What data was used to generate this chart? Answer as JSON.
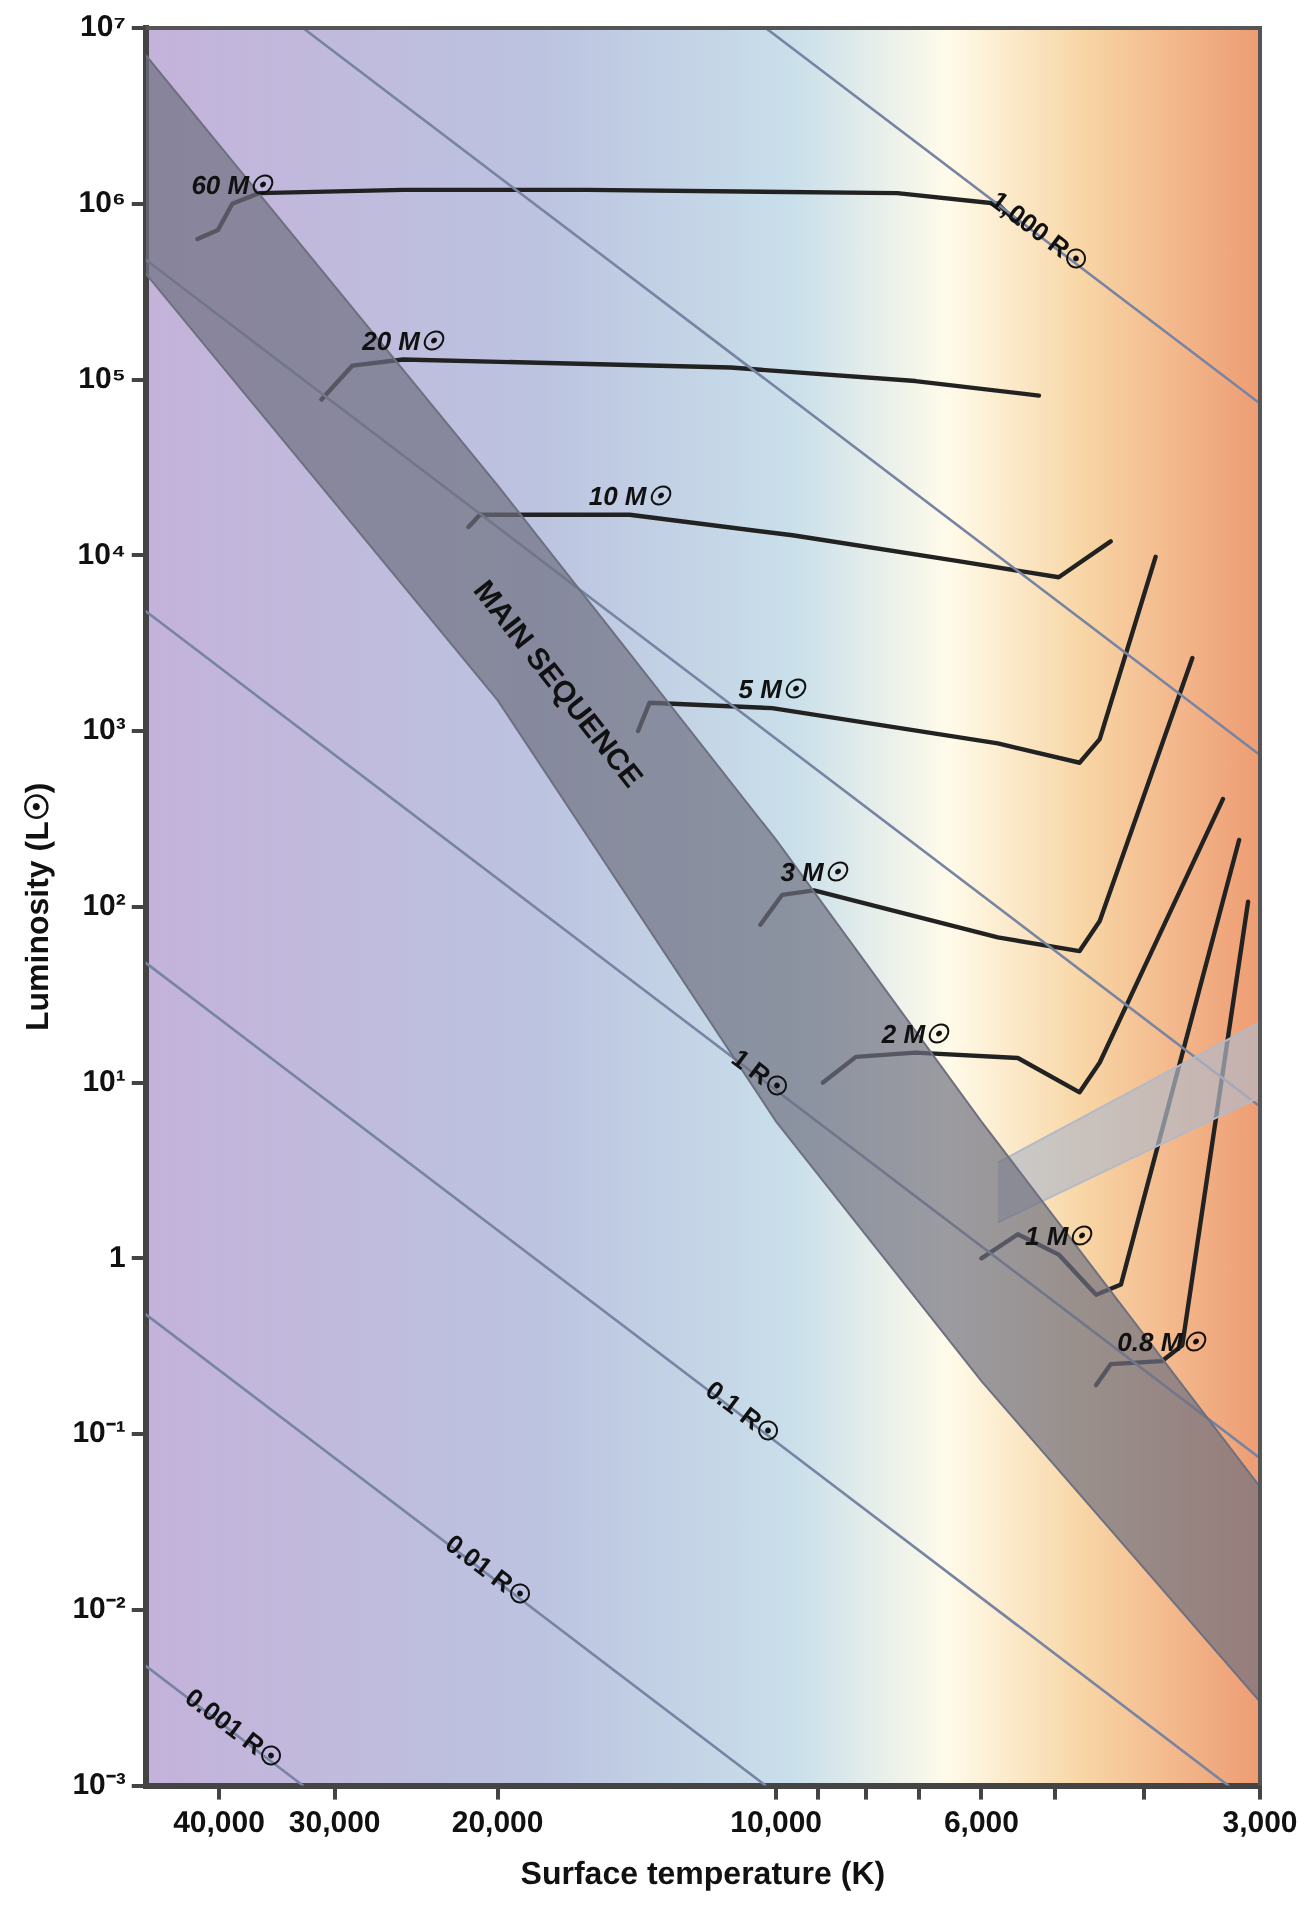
{
  "chart_data": {
    "type": "line",
    "xlabel": "Surface temperature (K)",
    "ylabel": "Luminosity (L☉)",
    "log": "xy",
    "legend": false,
    "xlim": [
      48000,
      3000
    ],
    "xticks": [
      {
        "value": 40000,
        "label": "40,000"
      },
      {
        "value": 30000,
        "label": "30,000"
      },
      {
        "value": 20000,
        "label": "20,000"
      },
      {
        "value": 10000,
        "label": "10,000"
      },
      {
        "value": 9000,
        "label": null
      },
      {
        "value": 8000,
        "label": null
      },
      {
        "value": 7000,
        "label": null
      },
      {
        "value": 6000,
        "label": "6,000"
      },
      {
        "value": 5000,
        "label": null
      },
      {
        "value": 4000,
        "label": null
      },
      {
        "value": 3000,
        "label": "3,000"
      }
    ],
    "ylim": [
      0.001,
      10000000
    ],
    "yticks": [
      {
        "value": 10000000,
        "label": "10⁷"
      },
      {
        "value": 1000000,
        "label": "10⁶"
      },
      {
        "value": 100000,
        "label": "10⁵"
      },
      {
        "value": 10000,
        "label": "10⁴"
      },
      {
        "value": 1000,
        "label": "10³"
      },
      {
        "value": 100,
        "label": "10²"
      },
      {
        "value": 10,
        "label": "10¹"
      },
      1,
      {
        "value": 0.1,
        "label": "10⁻¹"
      },
      {
        "value": 0.01,
        "label": "10⁻²"
      },
      {
        "value": 0.001,
        "label": "10⁻³"
      }
    ],
    "series": [
      {
        "type": "area",
        "name": "MAIN SEQUENCE",
        "color": "#6e7080",
        "x": [
          48000,
          20000,
          10000,
          6000,
          3000,
          3000,
          6000,
          10000,
          20000,
          48000
        ],
        "values": [
          7000000,
          25000,
          240,
          6,
          0.05,
          0.003,
          0.2,
          6,
          1500,
          400000
        ]
      },
      {
        "type": "area",
        "color": "#b4b9c6",
        "x": [
          5760,
          3000,
          3000,
          5760
        ],
        "values": [
          3.5,
          22,
          8.3,
          1.6
        ]
      },
      {
        "type": "line",
        "name": "1,000 R☉",
        "color": "#7784a3",
        "x": [
          10265,
          3000
        ],
        "values": [
          10000000,
          73000
        ]
      },
      {
        "type": "line",
        "color": "#7784a3",
        "x": [
          32460,
          3000
        ],
        "values": [
          10000000,
          730
        ]
      },
      {
        "type": "line",
        "color": "#7784a3",
        "x": [
          48000,
          3000
        ],
        "values": [
          480000,
          7.3
        ]
      },
      {
        "type": "line",
        "name": "1 R☉",
        "color": "#7784a3",
        "x": [
          48000,
          3000
        ],
        "values": [
          4800,
          0.073
        ]
      },
      {
        "type": "line",
        "name": "0.1 R☉",
        "color": "#7784a3",
        "x": [
          48000,
          3246
        ],
        "values": [
          48,
          0.001
        ]
      },
      {
        "type": "line",
        "name": "0.01 R☉",
        "color": "#7784a3",
        "x": [
          48000,
          10265
        ],
        "values": [
          0.48,
          0.001
        ]
      },
      {
        "type": "line",
        "name": "0.001 R☉",
        "color": "#7784a3",
        "x": [
          48000,
          32460
        ],
        "values": [
          0.0048,
          0.001
        ]
      },
      {
        "type": "line",
        "name": "60 M☉",
        "color": "#222222",
        "x": [
          42200,
          40100,
          38700,
          36200,
          25300,
          16000,
          7400,
          5760,
          5480
        ],
        "values": [
          630000,
          710000,
          1000000,
          1150000,
          1200000,
          1200000,
          1150000,
          1000000,
          770000
        ]
      },
      {
        "type": "line",
        "name": "20 M☉",
        "color": "#222222",
        "x": [
          31000,
          28700,
          25300,
          11200,
          7070,
          5200
        ],
        "values": [
          77000,
          120000,
          130000,
          117000,
          98000,
          81000
        ]
      },
      {
        "type": "line",
        "name": "10 M☉",
        "color": "#222222",
        "x": [
          21500,
          20900,
          14400,
          9600,
          6380,
          4950,
          4350
        ],
        "values": [
          14500,
          17000,
          17000,
          13000,
          9300,
          7500,
          12000
        ]
      },
      {
        "type": "line",
        "name": "5 M☉",
        "color": "#222222",
        "x": [
          14100,
          13700,
          10100,
          5760,
          4700,
          4470,
          3890
        ],
        "values": [
          1000,
          1450,
          1350,
          850,
          660,
          900,
          9800
        ]
      },
      {
        "type": "line",
        "name": "3 M☉",
        "color": "#222222",
        "x": [
          10400,
          9850,
          9100,
          5760,
          4700,
          4470,
          3550
        ],
        "values": [
          79,
          117,
          124,
          67,
          56,
          83,
          2600
        ]
      },
      {
        "type": "line",
        "name": "2 M☉",
        "color": "#222222",
        "x": [
          8900,
          8200,
          7070,
          5480,
          4700,
          4470,
          3290
        ],
        "values": [
          10,
          14,
          14.8,
          13.8,
          8.8,
          13,
          410
        ]
      },
      {
        "type": "line",
        "name": "1 M☉",
        "color": "#222222",
        "x": [
          6000,
          5480,
          4950,
          4510,
          4240,
          3160
        ],
        "values": [
          1,
          1.37,
          1.05,
          0.62,
          0.71,
          240
        ]
      },
      {
        "type": "line",
        "name": "0.8 M☉",
        "color": "#222222",
        "x": [
          4510,
          4350,
          3830,
          3640,
          3090
        ],
        "values": [
          0.19,
          0.25,
          0.26,
          0.32,
          107
        ]
      }
    ]
  }
}
